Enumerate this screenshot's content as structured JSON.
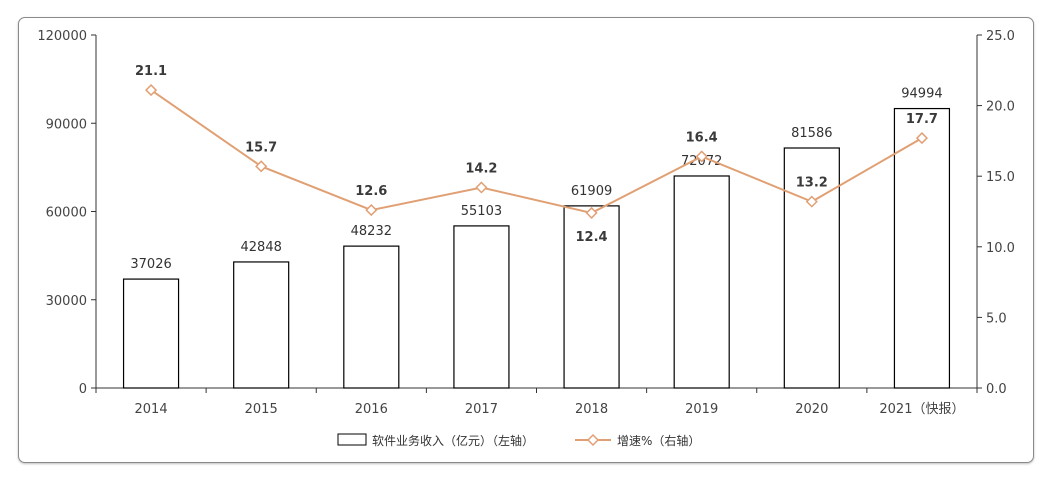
{
  "chart_data": {
    "type": "bar",
    "categories": [
      "2014",
      "2015",
      "2016",
      "2017",
      "2018",
      "2019",
      "2020",
      "2021（快报）"
    ],
    "series": [
      {
        "name": "软件业务收入（亿元）（左轴）",
        "type": "bar",
        "axis": "left",
        "values": [
          37026,
          42848,
          48232,
          55103,
          61909,
          72072,
          81586,
          94994
        ]
      },
      {
        "name": "增速%（右轴）",
        "type": "line",
        "axis": "right",
        "values": [
          21.1,
          15.7,
          12.6,
          14.2,
          12.4,
          16.4,
          13.2,
          17.7
        ]
      }
    ],
    "y_left": {
      "min": 0,
      "max": 120000,
      "ticks": [
        "0",
        "30000",
        "60000",
        "90000",
        "120000"
      ]
    },
    "y_right": {
      "min": 0,
      "max": 25,
      "ticks": [
        "0.0",
        "5.0",
        "10.0",
        "15.0",
        "20.0",
        "25.0"
      ]
    },
    "legend": {
      "position": "bottom"
    },
    "colors": {
      "bar_fill": "#ffffff",
      "bar_stroke": "#000000",
      "line": "#e0a074",
      "axis": "#333333"
    }
  }
}
